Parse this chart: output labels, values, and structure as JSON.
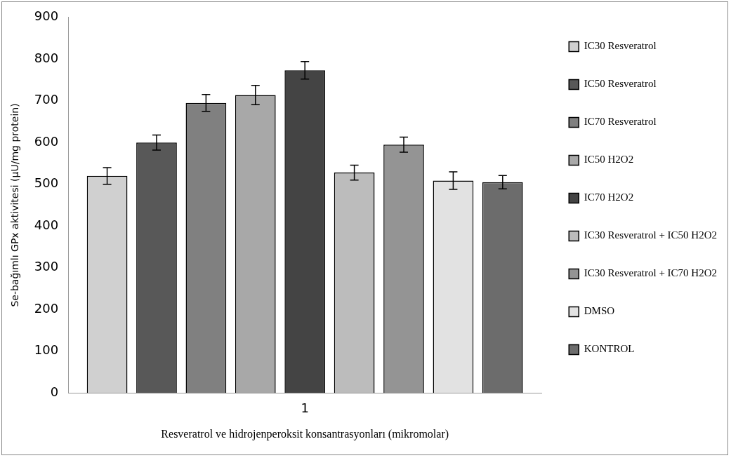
{
  "chart_data": {
    "type": "bar",
    "xlabel": "Resveratrol ve hidrojenperoksit konsantrasyonları (mikromolar)",
    "ylabel": "Se-bağımlı GPx aktivitesi (µU/mg protein)",
    "categories": [
      "1"
    ],
    "series": [
      {
        "name": "IC30 Resveratrol",
        "color": "#d0d0d0",
        "values": [
          520
        ],
        "errors": [
          20
        ]
      },
      {
        "name": "IC50 Resveratrol",
        "color": "#585858",
        "values": [
          600
        ],
        "errors": [
          18
        ]
      },
      {
        "name": "IC70 Resveratrol",
        "color": "#808080",
        "values": [
          695
        ],
        "errors": [
          20
        ]
      },
      {
        "name": "IC50 H2O2",
        "color": "#a8a8a8",
        "values": [
          714
        ],
        "errors": [
          23
        ]
      },
      {
        "name": "IC70 H2O2",
        "color": "#444444",
        "values": [
          773
        ],
        "errors": [
          21
        ]
      },
      {
        "name": "IC30 Resveratrol + IC50 H2O2",
        "color": "#bcbcbc",
        "values": [
          528
        ],
        "errors": [
          18
        ]
      },
      {
        "name": "IC30 Resveratrol + IC70 H2O2",
        "color": "#949494",
        "values": [
          595
        ],
        "errors": [
          18
        ]
      },
      {
        "name": "DMSO",
        "color": "#e2e2e2",
        "values": [
          509
        ],
        "errors": [
          21
        ]
      },
      {
        "name": "KONTROL",
        "color": "#6c6c6c",
        "values": [
          505
        ],
        "errors": [
          16
        ]
      }
    ],
    "ylim": [
      0,
      900
    ],
    "yticks": [
      0,
      100,
      200,
      300,
      400,
      500,
      600,
      700,
      800,
      900
    ],
    "grid": false,
    "legend": "right"
  }
}
